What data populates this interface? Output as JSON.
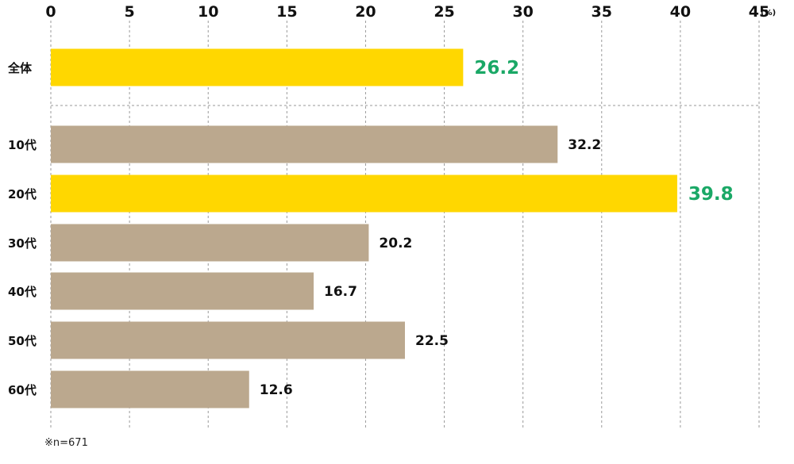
{
  "chart_data": {
    "type": "bar",
    "orientation": "horizontal",
    "unit_label": "(%)",
    "xlim": [
      0,
      45
    ],
    "x_ticks": [
      "0",
      "5",
      "10",
      "15",
      "20",
      "25",
      "30",
      "35",
      "40",
      "45"
    ],
    "categories": [
      "全体",
      "10代",
      "20代",
      "30代",
      "40代",
      "50代",
      "60代"
    ],
    "values": [
      26.2,
      32.2,
      39.8,
      20.2,
      16.7,
      22.5,
      12.6
    ],
    "value_labels": [
      "26.2",
      "32.2",
      "39.8",
      "20.2",
      "16.7",
      "22.5",
      "12.6"
    ],
    "highlighted": [
      true,
      false,
      true,
      false,
      false,
      false,
      false
    ],
    "grid": true,
    "note": "※n=671"
  },
  "colors": {
    "highlight_bar": "#FFD700",
    "normal_bar": "#BBA88E",
    "highlight_label": "#1AA866",
    "normal_label": "#111111"
  }
}
